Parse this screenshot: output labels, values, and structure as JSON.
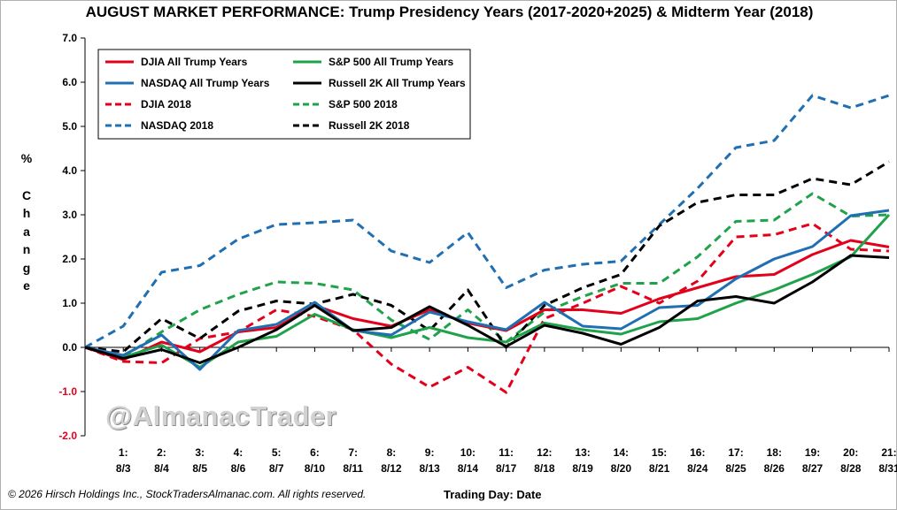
{
  "title": "AUGUST MARKET PERFORMANCE: Trump Presidency Years (2017-2020+2025) & Midterm Year (2018)",
  "ylabel_letters": [
    "%",
    "C",
    "h",
    "a",
    "n",
    "g",
    "e"
  ],
  "watermark": "@AlmanacTrader",
  "copyright": "© 2026 Hirsch Holdings Inc., StockTradersAlmanac.com. All rights reserved.",
  "xlabel": "Trading Day: Date",
  "chart_data": {
    "type": "line",
    "title": "AUGUST MARKET PERFORMANCE: Trump Presidency Years (2017-2020+2025) & Midterm Year (2018)",
    "xlabel": "Trading Day: Date",
    "ylabel": "% Change",
    "ylim": [
      -2.0,
      7.0
    ],
    "yticks": [
      7.0,
      6.0,
      5.0,
      4.0,
      3.0,
      2.0,
      1.0,
      0.0,
      -1.0,
      -2.0
    ],
    "ytick_labels": [
      "7.0",
      "6.0",
      "5.0",
      "4.0",
      "3.0",
      "2.0",
      "1.0",
      "0.0",
      "-1.0",
      "-2.0"
    ],
    "negative_tick_color": "#e3001b",
    "grid": false,
    "legend_position": "top-left",
    "categories": [
      {
        "day": "",
        "date": ""
      },
      {
        "day": "1:",
        "date": "8/3"
      },
      {
        "day": "2:",
        "date": "8/4"
      },
      {
        "day": "3:",
        "date": "8/5"
      },
      {
        "day": "4:",
        "date": "8/6"
      },
      {
        "day": "5:",
        "date": "8/7"
      },
      {
        "day": "6:",
        "date": "8/10"
      },
      {
        "day": "7:",
        "date": "8/11"
      },
      {
        "day": "8:",
        "date": "8/12"
      },
      {
        "day": "9:",
        "date": "8/13"
      },
      {
        "day": "10:",
        "date": "8/14"
      },
      {
        "day": "11:",
        "date": "8/17"
      },
      {
        "day": "12:",
        "date": "8/18"
      },
      {
        "day": "13:",
        "date": "8/19"
      },
      {
        "day": "14:",
        "date": "8/20"
      },
      {
        "day": "15:",
        "date": "8/21"
      },
      {
        "day": "16:",
        "date": "8/24"
      },
      {
        "day": "17:",
        "date": "8/25"
      },
      {
        "day": "18:",
        "date": "8/26"
      },
      {
        "day": "19:",
        "date": "8/27"
      },
      {
        "day": "20:",
        "date": "8/28"
      },
      {
        "day": "21:",
        "date": "8/31"
      }
    ],
    "series": [
      {
        "name": "DJIA All Trump Years",
        "color": "#e3001b",
        "dash": "solid",
        "values": [
          0,
          -0.28,
          0.12,
          -0.1,
          0.35,
          0.45,
          0.95,
          0.65,
          0.48,
          0.85,
          0.55,
          0.38,
          0.85,
          0.85,
          0.77,
          1.1,
          1.35,
          1.6,
          1.65,
          2.1,
          2.42,
          2.27
        ]
      },
      {
        "name": "S&P 500 All Trump Years",
        "color": "#1fa24a",
        "dash": "solid",
        "values": [
          0,
          -0.22,
          0.05,
          -0.45,
          0.12,
          0.25,
          0.75,
          0.4,
          0.22,
          0.45,
          0.22,
          0.12,
          0.55,
          0.4,
          0.3,
          0.58,
          0.65,
          1.0,
          1.3,
          1.65,
          2.05,
          3.0
        ]
      },
      {
        "name": "NASDAQ All Trump Years",
        "color": "#1f6fb2",
        "dash": "solid",
        "values": [
          0,
          -0.18,
          0.28,
          -0.5,
          0.38,
          0.52,
          1.02,
          0.38,
          0.28,
          0.8,
          0.58,
          0.4,
          1.02,
          0.48,
          0.42,
          0.9,
          0.95,
          1.55,
          2.0,
          2.28,
          2.98,
          3.1
        ]
      },
      {
        "name": "Russell 2K All Trump Years",
        "color": "#000000",
        "dash": "solid",
        "values": [
          0,
          -0.25,
          -0.05,
          -0.35,
          0.0,
          0.4,
          0.95,
          0.38,
          0.45,
          0.92,
          0.5,
          0.02,
          0.5,
          0.32,
          0.07,
          0.45,
          1.05,
          1.15,
          1.0,
          1.48,
          2.08,
          2.03
        ]
      },
      {
        "name": "DJIA 2018",
        "color": "#e3001b",
        "dash": "dashed",
        "values": [
          0,
          -0.32,
          -0.35,
          0.2,
          0.35,
          0.85,
          0.7,
          0.4,
          -0.38,
          -0.9,
          -0.45,
          -1.02,
          0.65,
          1.0,
          1.38,
          1.0,
          1.5,
          2.5,
          2.55,
          2.8,
          2.22,
          2.18
        ]
      },
      {
        "name": "S&P 500 2018",
        "color": "#1fa24a",
        "dash": "dashed",
        "values": [
          0,
          -0.22,
          0.35,
          0.85,
          1.2,
          1.48,
          1.45,
          1.3,
          0.62,
          0.18,
          0.85,
          0.12,
          0.8,
          1.15,
          1.45,
          1.45,
          2.05,
          2.85,
          2.88,
          3.48,
          2.97,
          3.0
        ]
      },
      {
        "name": "NASDAQ 2018",
        "color": "#1f6fb2",
        "dash": "dashed",
        "values": [
          0,
          0.48,
          1.7,
          1.85,
          2.45,
          2.78,
          2.82,
          2.88,
          2.18,
          1.92,
          2.6,
          1.35,
          1.75,
          1.88,
          1.95,
          2.78,
          3.6,
          4.52,
          4.68,
          5.7,
          5.42,
          5.7
        ]
      },
      {
        "name": "Russell 2K 2018",
        "color": "#000000",
        "dash": "dashed",
        "values": [
          0,
          -0.1,
          0.65,
          0.2,
          0.82,
          1.05,
          0.98,
          1.2,
          0.95,
          0.38,
          1.3,
          0.0,
          0.95,
          1.35,
          1.65,
          2.75,
          3.28,
          3.45,
          3.45,
          3.82,
          3.68,
          4.2
        ]
      }
    ]
  }
}
